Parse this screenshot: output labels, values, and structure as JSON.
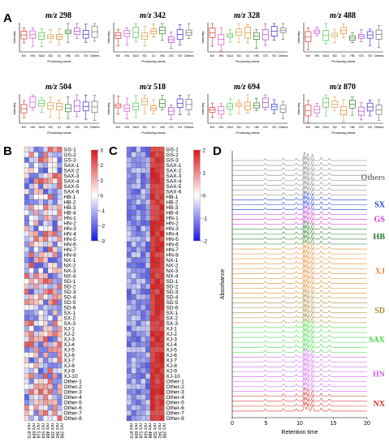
{
  "figure": {
    "panel_letters": [
      "A",
      "B",
      "C",
      "D"
    ]
  },
  "panel_a": {
    "x_axis_label": "Producing areas",
    "y_axis_label": "Intensity",
    "categories": [
      "NX",
      "HN",
      "SAX",
      "SD",
      "XJ",
      "HB",
      "GS",
      "SX",
      "Others"
    ],
    "category_colors": [
      "#d9342b",
      "#d64fd6",
      "#49c84d",
      "#d3a23f",
      "#e08a2e",
      "#2f7d2f",
      "#b13fd1",
      "#2b2bd6",
      "#6d6d6d"
    ],
    "plots": [
      {
        "mz_prefix": "m/z",
        "mz_value": "298"
      },
      {
        "mz_prefix": "m/z",
        "mz_value": "342"
      },
      {
        "mz_prefix": "m/z",
        "mz_value": "328"
      },
      {
        "mz_prefix": "m/z",
        "mz_value": "488"
      },
      {
        "mz_prefix": "m/z",
        "mz_value": "504"
      },
      {
        "mz_prefix": "m/z",
        "mz_value": "518"
      },
      {
        "mz_prefix": "m/z",
        "mz_value": "694"
      },
      {
        "mz_prefix": "m/z",
        "mz_value": "870"
      }
    ]
  },
  "heatmap_rows": [
    "GS-1",
    "GS-2",
    "GS-3",
    "SAX-1",
    "SAX-2",
    "SAX-3",
    "SAX-4",
    "SAX-5",
    "SAX-6",
    "HB-1",
    "HB-2",
    "HB-3",
    "HB-4",
    "HN-1",
    "HN-2",
    "HN-3",
    "HN-4",
    "HN-5",
    "HN-6",
    "HN-7",
    "HN-8",
    "NX-1",
    "NX-2",
    "NX-3",
    "NX-4",
    "SD-1",
    "SD-2",
    "SD-3",
    "SD-4",
    "SD-5",
    "SD-6",
    "SX-1",
    "SX-2",
    "SX-3",
    "XJ-1",
    "XJ-2",
    "XJ-3",
    "XJ-4",
    "XJ-5",
    "XJ-6",
    "XJ-7",
    "XJ-8",
    "XJ-9",
    "XJ-10",
    "Other-1",
    "Other-2",
    "Other-3",
    "Other-4",
    "Other-5",
    "Other-6",
    "Other-7",
    "Other-8"
  ],
  "panel_b": {
    "columns": [
      "m/z 870",
      "m/z 694",
      "m/z 518",
      "m/z 504",
      "m/z 488",
      "m/z 328",
      "m/z 342",
      "m/z 298"
    ],
    "colorbar_ticks": [
      "3",
      "2",
      "1",
      "0",
      "-1",
      "-2",
      "-3"
    ]
  },
  "panel_c": {
    "columns": [
      "m/z 870",
      "m/z 694",
      "m/z 518",
      "m/z 504",
      "m/z 488",
      "m/z 328",
      "m/z 342",
      "m/z 298"
    ],
    "colorbar_ticks": [
      "2",
      "1",
      "0",
      "-1",
      "-2"
    ]
  },
  "panel_d": {
    "x_axis_label": "Retention time",
    "y_axis_label": "Absorbance",
    "x_ticks": [
      "0",
      "5",
      "10",
      "15",
      "20"
    ],
    "groups": [
      {
        "label": "Others",
        "color": "#808080",
        "count": 8
      },
      {
        "label": "SX",
        "color": "#1f3fd6",
        "count": 3
      },
      {
        "label": "GS",
        "color": "#d431d4",
        "count": 3
      },
      {
        "label": "HB",
        "color": "#2a7a2a",
        "count": 4
      },
      {
        "label": "XJ",
        "color": "#e0892a",
        "count": 10
      },
      {
        "label": "SD",
        "color": "#a58a3a",
        "count": 6
      },
      {
        "label": "SAX",
        "color": "#3ed83e",
        "count": 6
      },
      {
        "label": "HN",
        "color": "#cc66ee",
        "count": 8
      },
      {
        "label": "NX",
        "color": "#d4332b",
        "count": 4
      }
    ]
  }
}
